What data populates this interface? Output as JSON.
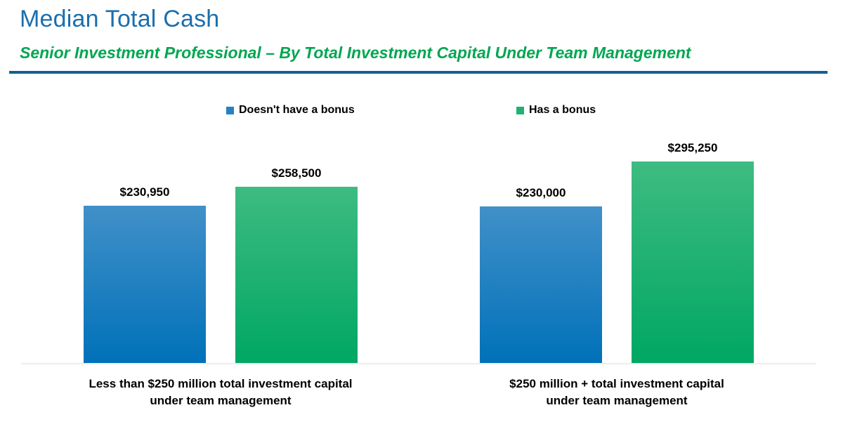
{
  "header": {
    "title": "Median Total Cash",
    "subtitle": "Senior Investment Professional – By Total Investment Capital Under Team Management"
  },
  "chart_data": {
    "type": "bar",
    "title": "Median Total Cash",
    "subtitle": "Senior Investment Professional – By Total Investment Capital Under Team Management",
    "categories": [
      [
        "Less than $250 million total investment capital",
        "under team management"
      ],
      [
        "$250 million + total investment capital",
        "under team management"
      ]
    ],
    "series": [
      {
        "name": "Doesn't have a bonus",
        "values": [
          230950,
          230000
        ]
      },
      {
        "name": "Has a bonus",
        "values": [
          258500,
          295250
        ]
      }
    ],
    "bars": [
      {
        "label": "$230,950",
        "value": 230950,
        "series": 0
      },
      {
        "label": "$258,500",
        "value": 258500,
        "series": 1
      },
      {
        "label": "$230,000",
        "value": 230000,
        "series": 0
      },
      {
        "label": "$295,250",
        "value": 295250,
        "series": 1
      }
    ],
    "ylim": [
      0,
      310000
    ],
    "grid": false,
    "legend_position": "top",
    "axis_labels_visible": false,
    "colors": {
      "blue_top": "#4190C8",
      "blue_bottom": "#0071B9",
      "green_top": "#3EBB81",
      "green_bottom": "#00A763",
      "legend_blue": "#2283C4",
      "legend_green": "#21B173",
      "title": "#1B6FAE",
      "subtitle": "#00A651",
      "divider": "#136091",
      "baseline": "#EDEDED",
      "label_text": "#000000"
    }
  }
}
